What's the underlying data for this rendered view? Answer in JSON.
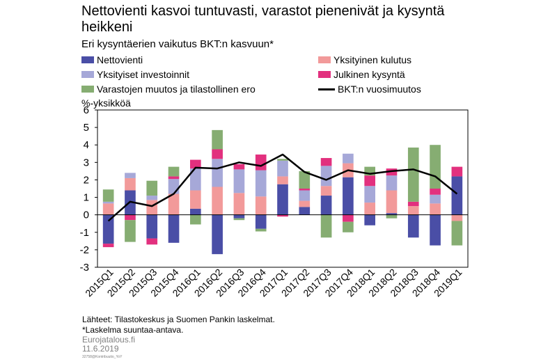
{
  "header": {
    "title": "Nettovienti kasvoi tuntuvasti, varastot pienenivät ja kysyntä heikkeni",
    "subtitle": "Eri kysyntäerien vaikutus BKT:n kasvuun*",
    "unit_label": "%-yksikköä"
  },
  "legend": [
    {
      "label": "Nettovienti",
      "color": "#4a4ea6",
      "kind": "box"
    },
    {
      "label": "Yksityinen kulutus",
      "color": "#f29a9a",
      "kind": "box"
    },
    {
      "label": "Yksityiset investoinnit",
      "color": "#a6a8d8",
      "kind": "box"
    },
    {
      "label": "Julkinen kysyntä",
      "color": "#e2307e",
      "kind": "box"
    },
    {
      "label": "Varastojen muutos ja tilastollinen ero",
      "color": "#86ad72",
      "kind": "box"
    },
    {
      "label": "BKT:n vuosimuutos",
      "color": "#000000",
      "kind": "line"
    }
  ],
  "chart_data": {
    "type": "bar",
    "stacked": true,
    "categories": [
      "2015Q1",
      "2015Q2",
      "2015Q3",
      "2015Q4",
      "2016Q1",
      "2016Q2",
      "2016Q3",
      "2016Q4",
      "2017Q1",
      "2017Q2",
      "2017Q3",
      "2017Q4",
      "2018Q1",
      "2018Q2",
      "2018Q3",
      "2018Q4",
      "2019Q1"
    ],
    "ylim": [
      -3,
      6
    ],
    "yticks": [
      "-3",
      "-2",
      "-1",
      "0",
      "1",
      "2",
      "3",
      "4",
      "5",
      "6"
    ],
    "grid": false,
    "series": [
      {
        "name": "Nettovienti",
        "color": "#4a4ea6",
        "values": [
          -1.65,
          1.4,
          -1.35,
          -1.6,
          0.35,
          -2.25,
          -0.2,
          -0.8,
          1.75,
          0.45,
          1.1,
          2.15,
          -0.6,
          0.1,
          -1.3,
          -1.75,
          2.2
        ]
      },
      {
        "name": "Yksityinen kulutus",
        "color": "#f29a9a",
        "values": [
          0.65,
          0.7,
          0.85,
          1.2,
          1.05,
          1.6,
          1.25,
          1.05,
          0.45,
          0.35,
          0.55,
          0.8,
          0.7,
          1.3,
          0.5,
          0.65,
          -0.35
        ]
      },
      {
        "name": "Yksityiset investoinnit",
        "color": "#a6a8d8",
        "values": [
          0.1,
          0.3,
          0.25,
          0.85,
          1.25,
          1.6,
          1.35,
          1.5,
          0.9,
          0.6,
          1.15,
          0.55,
          0.95,
          0.85,
          0.0,
          0.5,
          0.0
        ]
      },
      {
        "name": "Julkinen kysyntä",
        "color": "#e2307e",
        "values": [
          -0.2,
          -0.3,
          -0.35,
          0.15,
          0.5,
          0.55,
          0.3,
          0.9,
          -0.1,
          0.1,
          0.45,
          -0.4,
          0.6,
          0.4,
          0.25,
          0.35,
          0.55
        ]
      },
      {
        "name": "Varastojen muutos ja tilastollinen ero",
        "color": "#86ad72",
        "values": [
          0.7,
          -1.25,
          0.85,
          0.55,
          -0.55,
          1.1,
          -0.1,
          -0.15,
          0.1,
          1.0,
          -1.3,
          -0.6,
          0.5,
          -0.2,
          3.1,
          2.5,
          -1.4
        ]
      },
      {
        "name": "BKT:n vuosimuutos",
        "color": "#000000",
        "kind": "line",
        "values": [
          -0.35,
          0.75,
          0.5,
          1.2,
          2.7,
          2.65,
          3.0,
          2.8,
          3.45,
          2.45,
          2.0,
          2.55,
          2.35,
          2.5,
          2.6,
          2.2,
          1.2
        ]
      }
    ]
  },
  "footer": {
    "sources": "Lähteet: Tilastokeskus ja Suomen Pankin laskelmat.",
    "note": "*Laskelma suuntaa-antava.",
    "brand": "Eurojatalous.fi",
    "date": "11.6.2019",
    "code": "32758@Kontribuutio_YoY"
  }
}
